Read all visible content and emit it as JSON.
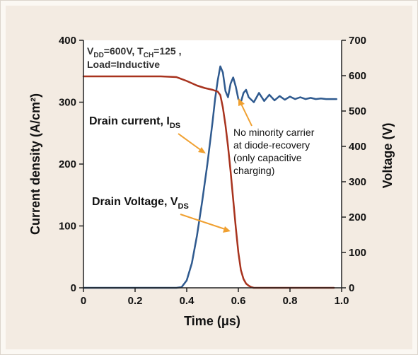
{
  "chart_data": {
    "type": "line",
    "xlabel": "Time (μs)",
    "ylabel_left": "Current density (A/cm²)",
    "ylabel_right": "Voltage (V)",
    "xlim": [
      0,
      1.0
    ],
    "ylim_left": [
      0,
      400
    ],
    "ylim_right": [
      0,
      700
    ],
    "x_ticks": [
      "0",
      "0.2",
      "0.4",
      "0.6",
      "0.8",
      "1.0"
    ],
    "y_left_ticks": [
      "0",
      "100",
      "200",
      "300",
      "400"
    ],
    "y_right_ticks": [
      "0",
      "100",
      "200",
      "300",
      "400",
      "500",
      "600",
      "700"
    ],
    "conditions": {
      "line1": {
        "a": "V",
        "a_sub": "DD",
        "b": "=600V, T",
        "b_sub": "CH",
        "c": "=125 ,"
      },
      "line2": "Load=Inductive"
    },
    "series": [
      {
        "name": "Drain current, I",
        "name_sub": "DS",
        "axis": "left",
        "color": "#2f5a8f",
        "x": [
          0.0,
          0.1,
          0.2,
          0.3,
          0.36,
          0.38,
          0.4,
          0.42,
          0.44,
          0.46,
          0.48,
          0.5,
          0.51,
          0.52,
          0.53,
          0.54,
          0.55,
          0.56,
          0.57,
          0.58,
          0.59,
          0.6,
          0.61,
          0.62,
          0.63,
          0.64,
          0.66,
          0.68,
          0.7,
          0.72,
          0.74,
          0.76,
          0.78,
          0.8,
          0.82,
          0.84,
          0.86,
          0.88,
          0.9,
          0.92,
          0.94,
          0.96,
          0.98
        ],
        "y": [
          0,
          0,
          0,
          0,
          0,
          1,
          12,
          40,
          85,
          140,
          200,
          268,
          305,
          335,
          358,
          348,
          318,
          308,
          330,
          340,
          325,
          305,
          300,
          315,
          320,
          308,
          300,
          315,
          302,
          312,
          303,
          310,
          304,
          309,
          305,
          308,
          305,
          307,
          305,
          306,
          305,
          305,
          305
        ]
      },
      {
        "name": "Drain Voltage, V",
        "name_sub": "DS",
        "axis": "right",
        "color": "#a8331e",
        "x": [
          0.0,
          0.1,
          0.2,
          0.3,
          0.36,
          0.4,
          0.44,
          0.47,
          0.5,
          0.52,
          0.53,
          0.54,
          0.55,
          0.56,
          0.57,
          0.58,
          0.59,
          0.6,
          0.61,
          0.62,
          0.63,
          0.64,
          0.65,
          0.66,
          0.7,
          0.8,
          0.9,
          0.97
        ],
        "y": [
          598,
          598,
          598,
          598,
          596,
          585,
          572,
          565,
          560,
          555,
          545,
          510,
          460,
          400,
          330,
          250,
          170,
          100,
          50,
          25,
          12,
          6,
          2,
          0,
          0,
          0,
          0,
          0
        ]
      }
    ],
    "annotations": {
      "current_label": {
        "text": "Drain current, I",
        "sub": "DS"
      },
      "voltage_label": {
        "text": "Drain Voltage, V",
        "sub": "DS"
      },
      "note": [
        "No minority carrier",
        "at diode-recovery",
        "(only capacitive",
        "charging)"
      ]
    },
    "grid": false,
    "legend": "none"
  }
}
